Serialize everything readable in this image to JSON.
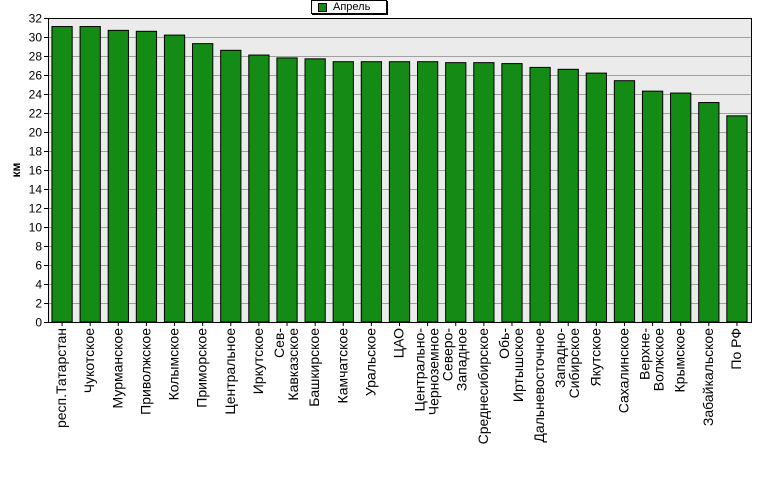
{
  "chart_data": {
    "type": "bar",
    "legend": {
      "position": "top-center",
      "entries": [
        "Апрель"
      ]
    },
    "ylabel": "км",
    "xlabel": "",
    "ylim": [
      0,
      32
    ],
    "yticks": [
      0,
      2,
      4,
      6,
      8,
      10,
      12,
      14,
      16,
      18,
      20,
      22,
      24,
      26,
      28,
      30,
      32
    ],
    "grid": true,
    "colors": {
      "bar": "#148B14",
      "plot_background": "#EBEBEB",
      "grid": "#A0A0A0"
    },
    "categories": [
      [
        "респ.Татарстан"
      ],
      [
        "Чукотское"
      ],
      [
        "Мурманское"
      ],
      [
        "Приволжское"
      ],
      [
        "Колымское"
      ],
      [
        "Приморское"
      ],
      [
        "Центральное"
      ],
      [
        "Иркутское"
      ],
      [
        "Сев-",
        "Кавказское"
      ],
      [
        "Башкирское"
      ],
      [
        "Камчатское"
      ],
      [
        "Уральское"
      ],
      [
        "ЦАО"
      ],
      [
        "Центрально-",
        "Черноземное"
      ],
      [
        "Северо-",
        "Западное"
      ],
      [
        "Среднесибирское"
      ],
      [
        "Обь-",
        "Иртышское"
      ],
      [
        "Дальневосточное"
      ],
      [
        "Западно-",
        "Сибирское"
      ],
      [
        "Якутское"
      ],
      [
        "Сахалинское"
      ],
      [
        "Верхне-",
        "Волжское"
      ],
      [
        "Крымское"
      ],
      [
        "Забайкальское"
      ],
      [
        "По РФ"
      ]
    ],
    "series": [
      {
        "name": "Апрель",
        "values": [
          31.1,
          31.1,
          30.7,
          30.6,
          30.2,
          29.3,
          28.6,
          28.1,
          27.8,
          27.7,
          27.4,
          27.4,
          27.4,
          27.4,
          27.3,
          27.3,
          27.2,
          26.8,
          26.6,
          26.2,
          25.4,
          24.3,
          24.1,
          23.1,
          21.7
        ]
      }
    ]
  }
}
